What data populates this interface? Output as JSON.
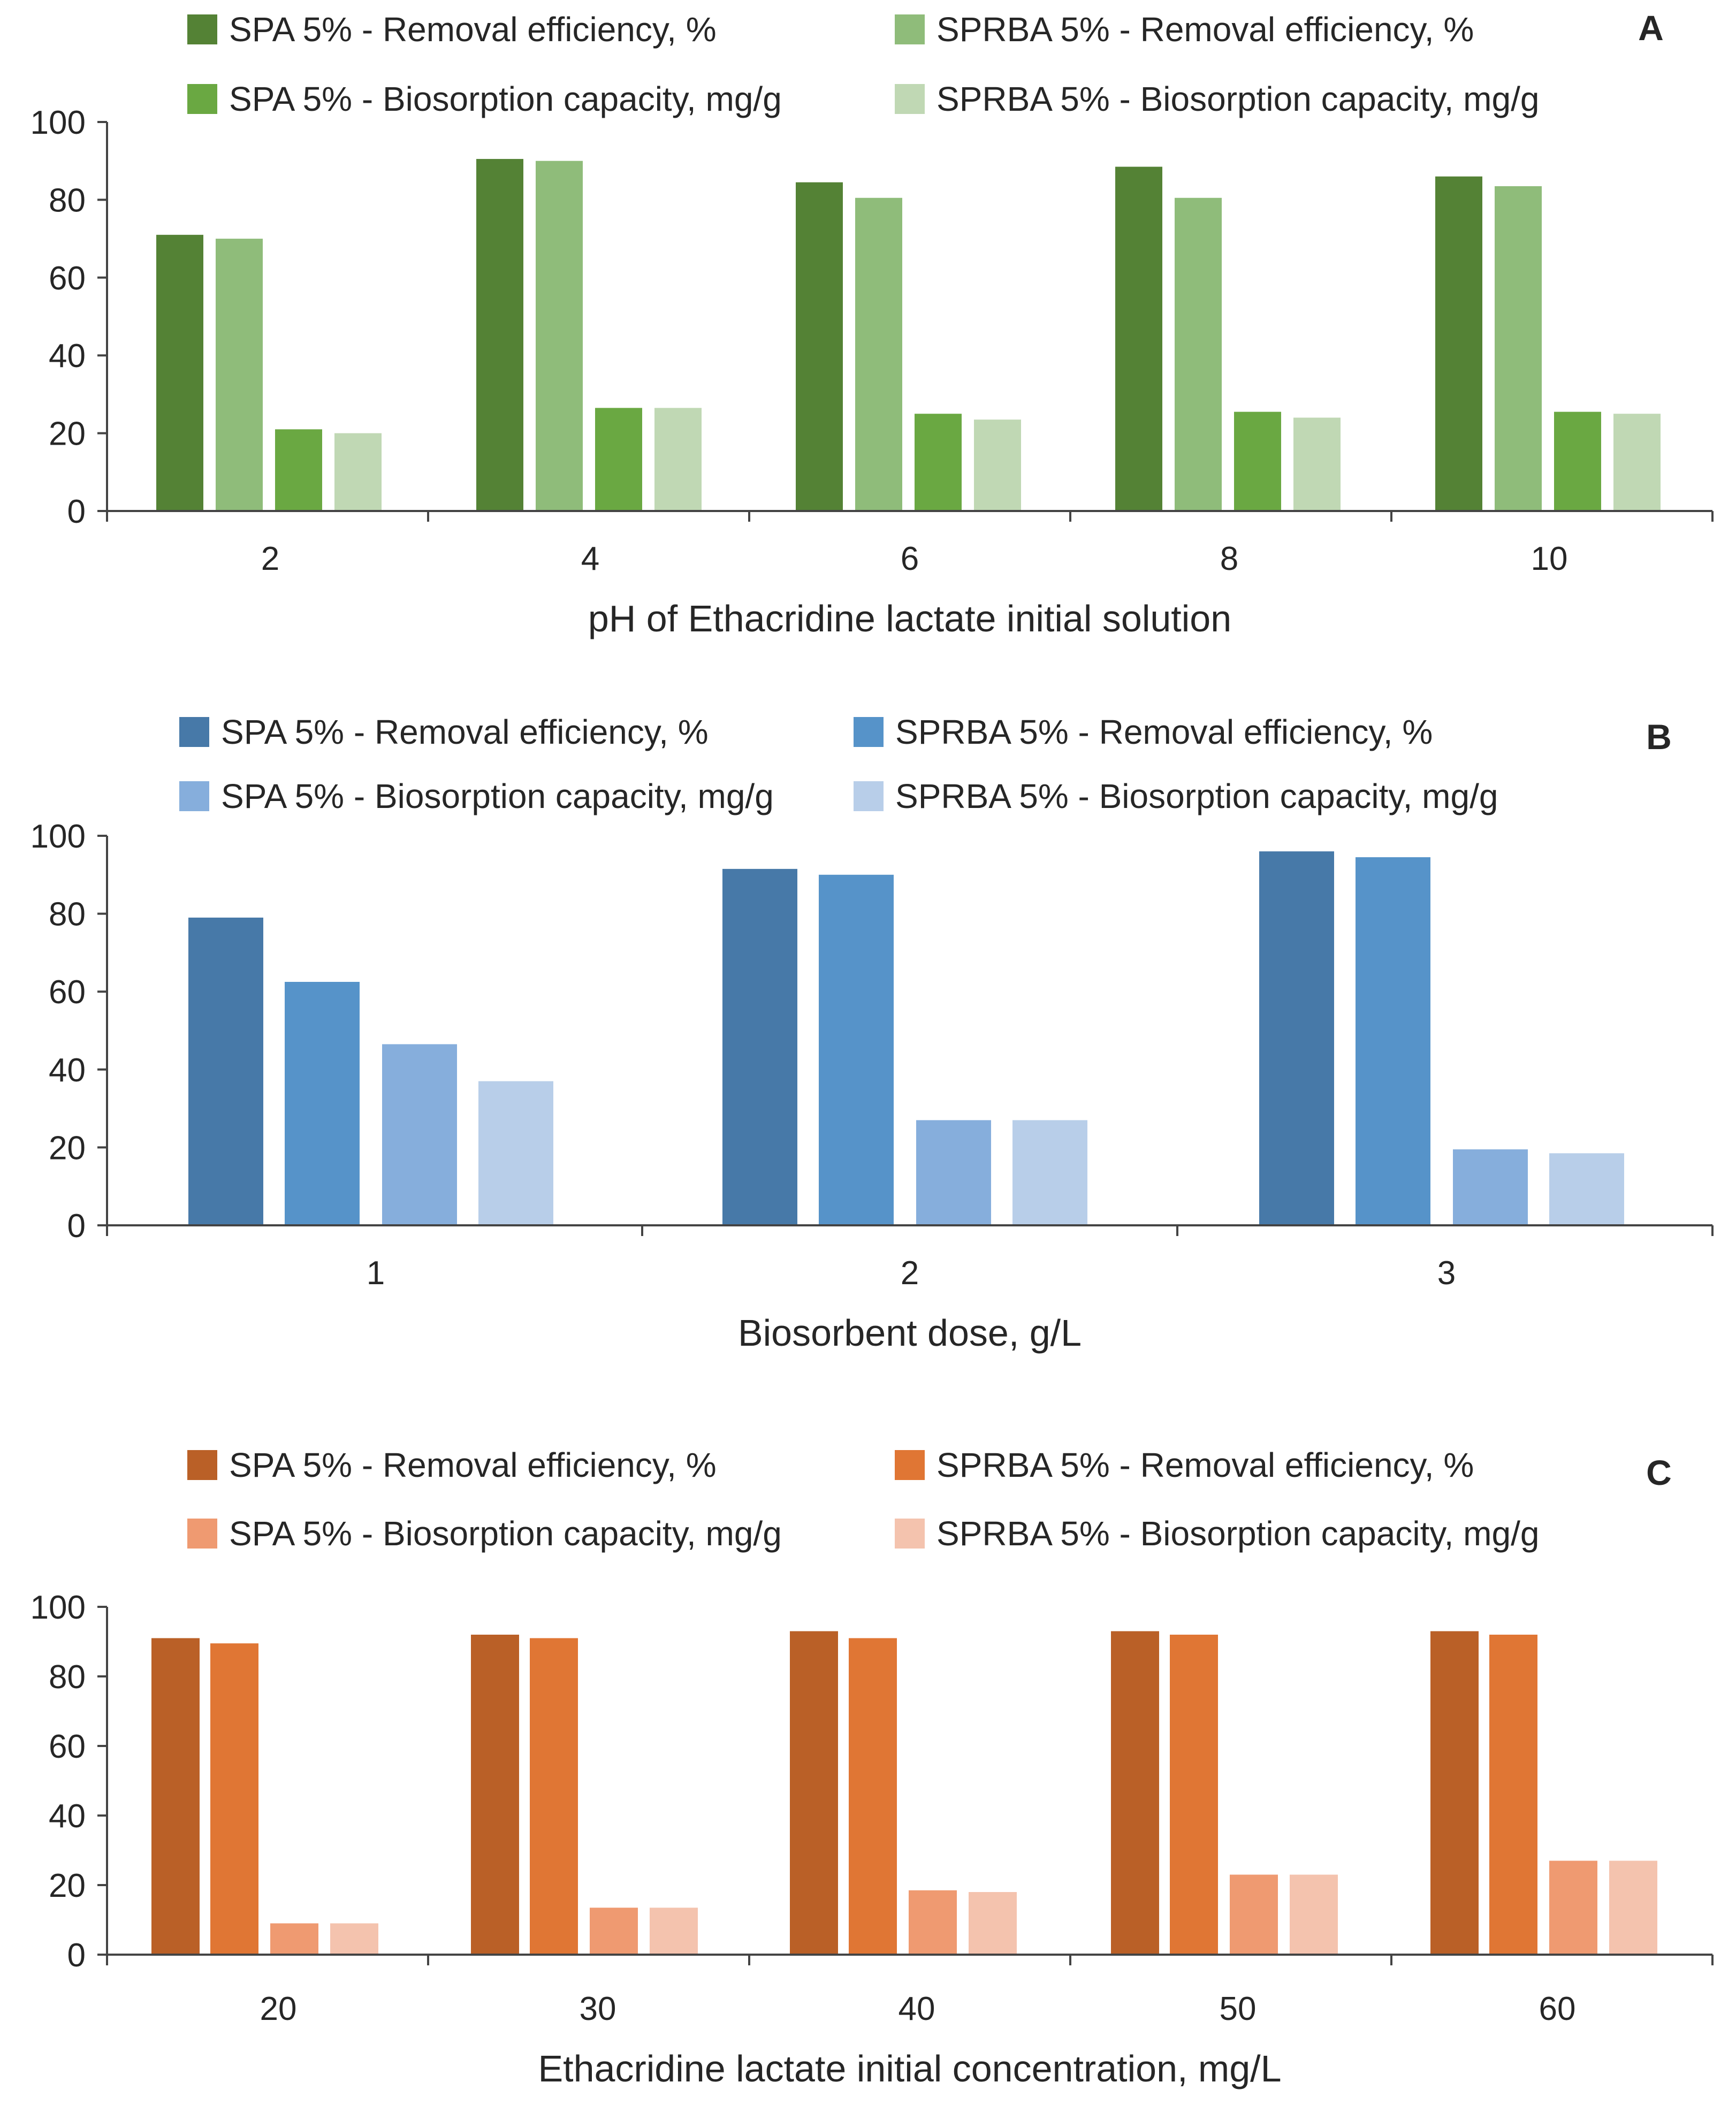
{
  "chart_data": [
    {
      "type": "bar",
      "panel_label": "A",
      "xlabel": "pH of Ethacridine lactate initial solution",
      "ylabel": "",
      "ylim": [
        0,
        100
      ],
      "yticks": [
        0,
        20,
        40,
        60,
        80,
        100
      ],
      "categories": [
        "2",
        "4",
        "6",
        "8",
        "10"
      ],
      "legend_position": "top",
      "series": [
        {
          "name": "SPA 5% - Removal efficiency, %",
          "color": "#548235",
          "values": [
            71,
            90.5,
            84.5,
            88.5,
            86
          ]
        },
        {
          "name": "SPRBA 5% - Removal efficiency, %",
          "color": "#8FBC7A",
          "values": [
            70,
            90,
            80.5,
            80.5,
            83.5
          ]
        },
        {
          "name": "SPA 5% - Biosorption capacity, mg/g",
          "color": "#6AA842",
          "values": [
            21,
            26.5,
            25,
            25.5,
            25.5
          ]
        },
        {
          "name": "SPRBA 5% - Biosorption capacity, mg/g",
          "color": "#C0D8B4",
          "values": [
            20,
            26.5,
            23.5,
            24,
            25
          ]
        }
      ]
    },
    {
      "type": "bar",
      "panel_label": "B",
      "xlabel": "Biosorbent dose, g/L",
      "ylabel": "",
      "ylim": [
        0,
        100
      ],
      "yticks": [
        0,
        20,
        40,
        60,
        80,
        100
      ],
      "categories": [
        "1",
        "2",
        "3"
      ],
      "legend_position": "top",
      "series": [
        {
          "name": "SPA 5% - Removal efficiency, %",
          "color": "#4779A8",
          "values": [
            79,
            91.5,
            96
          ]
        },
        {
          "name": "SPRBA 5% - Removal efficiency, %",
          "color": "#5693C9",
          "values": [
            62.5,
            90,
            94.5
          ]
        },
        {
          "name": "SPA 5% - Biosorption capacity, mg/g",
          "color": "#86AEDC",
          "values": [
            46.5,
            27,
            19.5
          ]
        },
        {
          "name": "SPRBA 5% - Biosorption capacity, mg/g",
          "color": "#B8CEE9",
          "values": [
            37,
            27,
            18.5
          ]
        }
      ]
    },
    {
      "type": "bar",
      "panel_label": "C",
      "xlabel": "Ethacridine lactate initial concentration, mg/L",
      "ylabel": "",
      "ylim": [
        0,
        100
      ],
      "yticks": [
        0,
        20,
        40,
        60,
        80,
        100
      ],
      "categories": [
        "20",
        "30",
        "40",
        "50",
        "60"
      ],
      "legend_position": "top",
      "series": [
        {
          "name": "SPA 5% - Removal efficiency, %",
          "color": "#BA6027",
          "values": [
            91,
            92,
            93,
            93,
            93
          ]
        },
        {
          "name": "SPRBA 5% - Removal efficiency, %",
          "color": "#E07634",
          "values": [
            89.5,
            91,
            91,
            92,
            92
          ]
        },
        {
          "name": "SPA 5% - Biosorption capacity, mg/g",
          "color": "#EF9A71",
          "values": [
            9,
            13.5,
            18.5,
            23,
            27
          ]
        },
        {
          "name": "SPRBA 5% - Biosorption capacity, mg/g",
          "color": "#F4C3AE",
          "values": [
            9,
            13.5,
            18,
            23,
            27
          ]
        }
      ]
    }
  ]
}
